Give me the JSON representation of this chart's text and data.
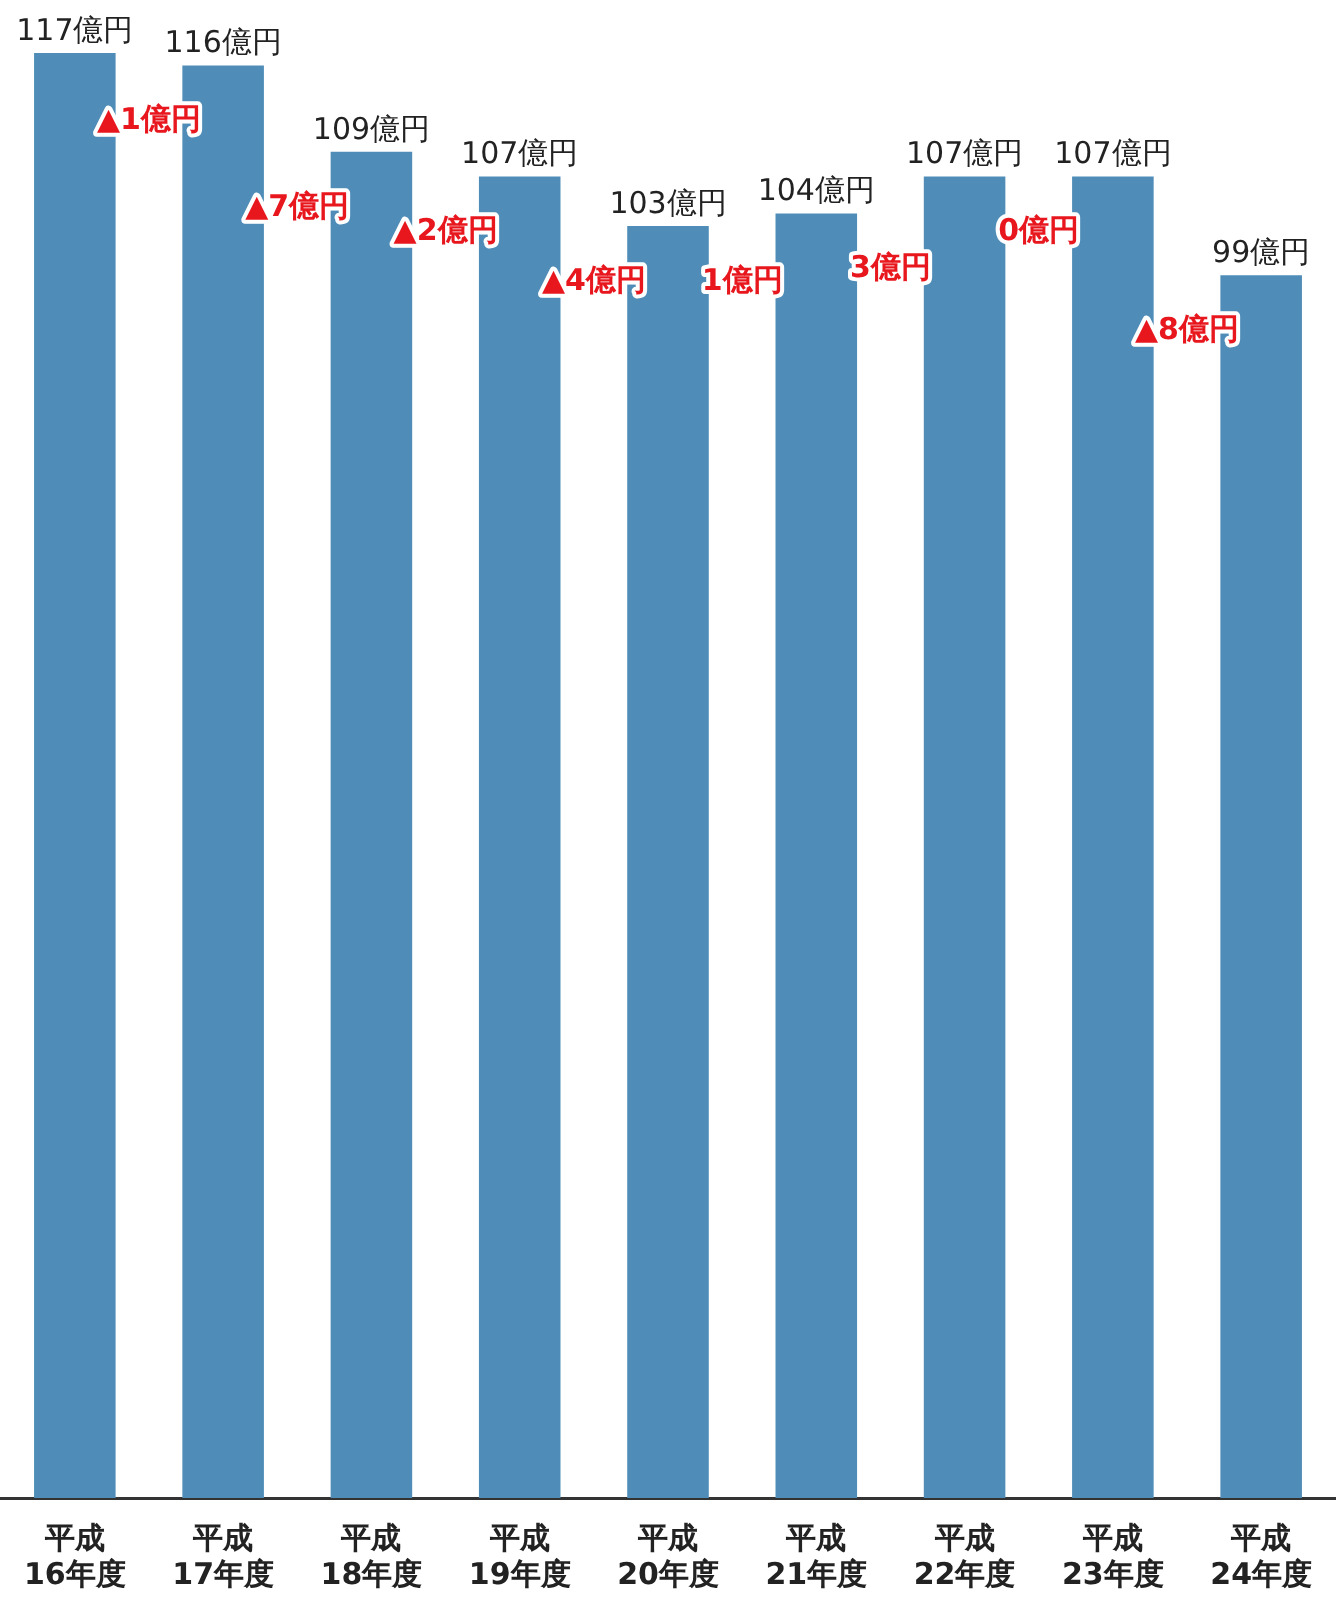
{
  "chart_data": {
    "type": "bar",
    "categories": [
      "平成\n16年度",
      "平成\n17年度",
      "平成\n18年度",
      "平成\n19年度",
      "平成\n20年度",
      "平成\n21年度",
      "平成\n22年度",
      "平成\n23年度",
      "平成\n24年度"
    ],
    "values": [
      117,
      116,
      109,
      107,
      103,
      104,
      107,
      107,
      99
    ],
    "value_labels": [
      "117億円",
      "116億円",
      "109億円",
      "107億円",
      "103億円",
      "104億円",
      "107億円",
      "107億円",
      "99億円"
    ],
    "color": "#4f8db8",
    "annotations": [
      "▲1億円",
      "▲7億円",
      "▲2億円",
      "▲4億円",
      "1億円",
      "3億円",
      "0億円",
      "▲8億円"
    ]
  }
}
